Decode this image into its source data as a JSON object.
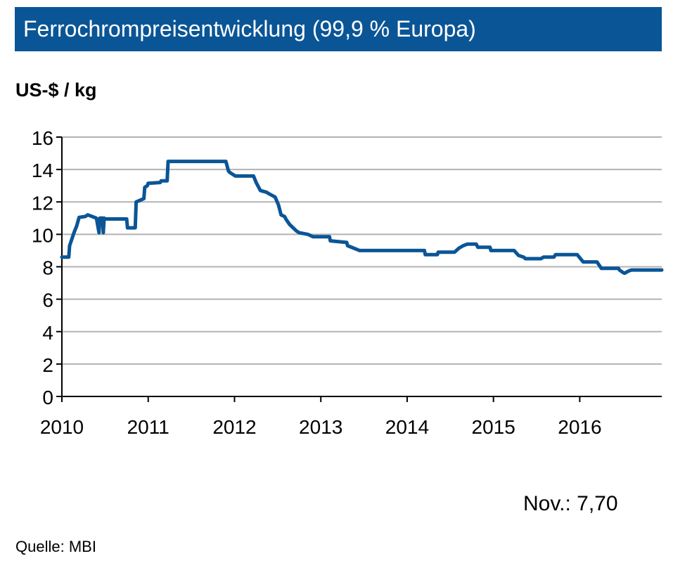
{
  "title": "Ferrochrompreisentwicklung (99,9 % Europa)",
  "footnote": "Nov.: 7,70",
  "source": "Quelle:  MBI",
  "colors": {
    "title_bg": "#0a5596",
    "line": "#0a5596",
    "grid": "#b3b3b3"
  },
  "chart_data": {
    "type": "line",
    "title": "",
    "xlabel": "",
    "ylabel": "US-$ / kg",
    "xlim": [
      2010.0,
      2016.95
    ],
    "ylim": [
      0,
      16
    ],
    "grid": true,
    "y_ticks": [
      "0",
      "2",
      "4",
      "6",
      "8",
      "10",
      "12",
      "14",
      "16"
    ],
    "x_ticks": [
      "2010",
      "2011",
      "2012",
      "2013",
      "2014",
      "2015",
      "2016"
    ],
    "series": [
      {
        "x": [
          2010.0,
          2010.08,
          2010.09,
          2010.14,
          2010.17,
          2010.2,
          2010.27,
          2010.3,
          2010.35,
          2010.4,
          2010.43,
          2010.44,
          2010.47,
          2010.48,
          2010.49,
          2010.5,
          2010.75,
          2010.76,
          2010.85,
          2010.86,
          2010.95,
          2010.96,
          2010.99,
          2011.0,
          2011.14,
          2011.15,
          2011.22,
          2011.23,
          2011.9,
          2011.93,
          2011.95,
          2012.01,
          2012.22,
          2012.25,
          2012.26,
          2012.3,
          2012.37,
          2012.4,
          2012.47,
          2012.51,
          2012.54,
          2012.58,
          2012.6,
          2012.64,
          2012.72,
          2012.75,
          2012.85,
          2012.91,
          2013.1,
          2013.11,
          2013.3,
          2013.31,
          2013.45,
          2013.46,
          2014.2,
          2014.21,
          2014.35,
          2014.36,
          2014.55,
          2014.6,
          2014.65,
          2014.7,
          2014.8,
          2014.82,
          2014.96,
          2014.97,
          2015.24,
          2015.29,
          2015.35,
          2015.37,
          2015.55,
          2015.58,
          2015.7,
          2015.72,
          2015.97,
          2016.04,
          2016.2,
          2016.25,
          2016.45,
          2016.46,
          2016.5,
          2016.52,
          2016.57,
          2016.6,
          2016.95
        ],
        "y": [
          8.6,
          8.6,
          9.3,
          10.1,
          10.5,
          11.05,
          11.1,
          11.2,
          11.1,
          11.0,
          10.1,
          11.0,
          11.0,
          10.1,
          11.0,
          10.95,
          10.95,
          10.4,
          10.4,
          12.0,
          12.2,
          12.9,
          13.0,
          13.15,
          13.2,
          13.3,
          13.3,
          14.5,
          14.5,
          13.9,
          13.8,
          13.6,
          13.6,
          13.2,
          13.1,
          12.7,
          12.6,
          12.5,
          12.3,
          11.8,
          11.2,
          11.1,
          10.9,
          10.6,
          10.2,
          10.1,
          10.0,
          9.85,
          9.85,
          9.6,
          9.5,
          9.3,
          9.0,
          9.0,
          9.0,
          8.75,
          8.75,
          8.9,
          8.9,
          9.15,
          9.3,
          9.4,
          9.4,
          9.2,
          9.2,
          9.0,
          9.0,
          8.7,
          8.6,
          8.5,
          8.5,
          8.6,
          8.6,
          8.75,
          8.75,
          8.3,
          8.3,
          7.9,
          7.9,
          7.8,
          7.65,
          7.6,
          7.75,
          7.8,
          7.8
        ]
      }
    ]
  }
}
